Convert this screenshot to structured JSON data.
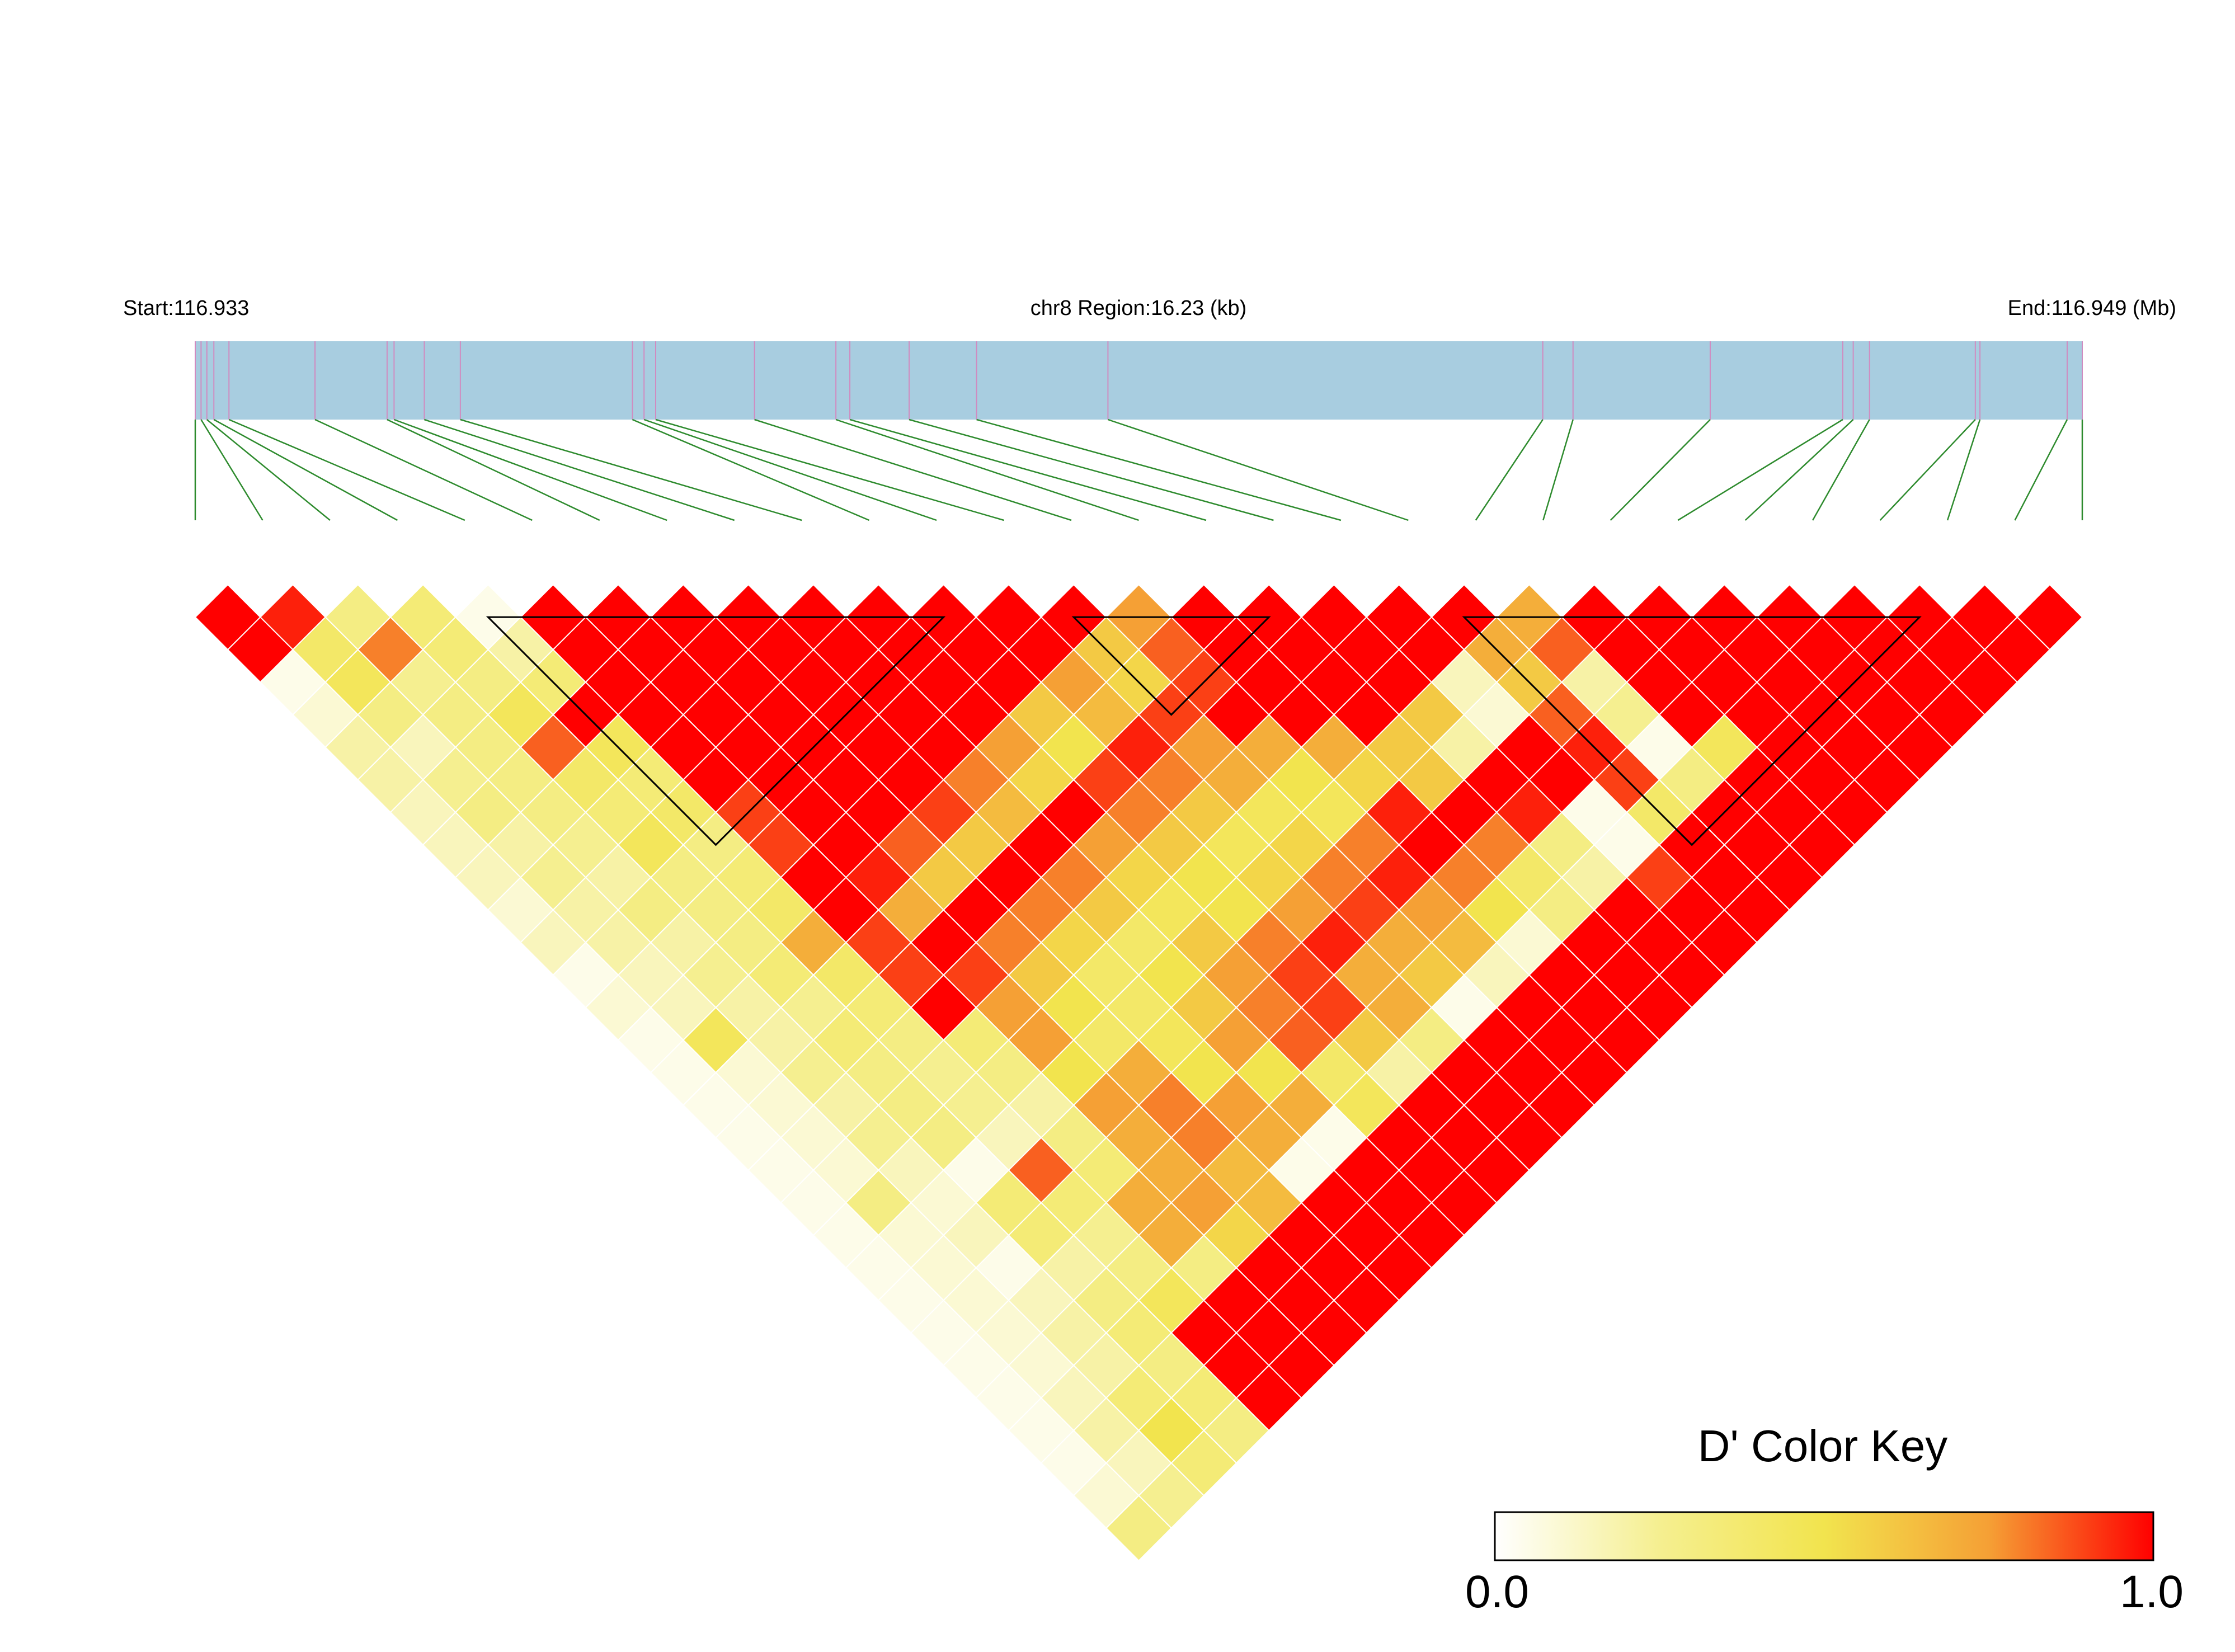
{
  "header": {
    "start_label": "Start:116.933",
    "region_label": "chr8 Region:16.23 (kb)",
    "end_label": "End:116.949 (Mb)"
  },
  "legend": {
    "title": "D' Color Key",
    "min_label": "0.0",
    "max_label": "1.0"
  },
  "colors": {
    "track_fill": "#A8CDE0",
    "snp_tick": "#D08BC0",
    "connector": "#2E8B2E",
    "block_outline": "#000000",
    "scale": [
      "#FFFFFF",
      "#F5EF90",
      "#F2E44E",
      "#F5A035",
      "#FF0000"
    ]
  },
  "chart_data": {
    "type": "heatmap",
    "subtype": "linkage disequilibrium triangle (D')",
    "chromosome": "chr8",
    "region_start_mb": 116.933,
    "region_end_mb": 116.949,
    "region_length_kb": 16.23,
    "snp_count": 29,
    "snp_positions_kb": [
      0.0,
      0.16,
      0.29,
      1.03,
      1.65,
      1.71,
      1.97,
      2.28,
      3.76,
      3.86,
      3.96,
      4.81,
      5.51,
      5.63,
      6.14,
      6.72,
      7.85,
      11.59,
      11.85,
      13.03,
      14.17,
      14.26,
      14.4,
      15.31,
      15.35,
      16.23,
      0.05,
      0.1,
      16.1
    ],
    "value_range": [
      0,
      1
    ],
    "color_scale": "white → yellow → orange → red (D' 0.0 → 1.0)",
    "haplotype_blocks": [
      [
        4,
        12
      ],
      [
        13,
        17
      ],
      [
        19,
        27
      ]
    ],
    "d_prime_by_distance": [
      [
        1,
        0.95,
        0.3,
        0.35,
        0.05,
        1,
        1,
        1,
        1,
        1,
        1,
        1,
        1,
        1,
        0.75,
        1,
        1,
        1,
        1,
        1,
        0.7,
        1,
        1,
        1,
        1,
        1,
        1,
        1,
        1
      ],
      [
        1,
        0.4,
        0.8,
        0.35,
        0.2,
        1,
        1,
        1,
        1,
        1,
        1,
        1,
        1,
        0.6,
        0.85,
        1,
        1,
        1,
        1,
        0.7,
        0.85,
        1,
        1,
        1,
        1,
        1,
        1,
        1
      ],
      [
        0.05,
        0.45,
        0.25,
        0.3,
        0.35,
        1,
        1,
        1,
        1,
        1,
        1,
        1,
        0.75,
        0.55,
        0.9,
        1,
        1,
        1,
        0.15,
        0.6,
        0.2,
        1,
        1,
        1,
        1,
        1,
        1
      ],
      [
        0.1,
        0.3,
        0.3,
        0.45,
        1,
        1,
        1,
        1,
        1,
        1,
        1,
        0.6,
        0.65,
        0.9,
        1,
        1,
        1,
        0.6,
        0.1,
        0.85,
        0.25,
        1,
        1,
        1,
        1,
        1
      ],
      [
        0.2,
        0.15,
        0.3,
        0.85,
        0.45,
        1,
        1,
        1,
        1,
        1,
        0.75,
        0.5,
        0.95,
        0.75,
        0.7,
        0.7,
        0.6,
        0.2,
        1,
        0.95,
        0.05,
        0.45,
        1,
        1,
        1
      ],
      [
        0.2,
        0.25,
        0.3,
        0.4,
        0.35,
        1,
        1,
        1,
        1,
        0.8,
        0.55,
        0.9,
        0.8,
        0.7,
        0.5,
        0.55,
        0.6,
        1,
        1,
        0.9,
        0.3,
        1,
        1,
        1
      ],
      [
        0.15,
        0.3,
        0.3,
        0.35,
        0.4,
        0.9,
        1,
        1,
        0.9,
        0.65,
        1,
        0.8,
        0.6,
        0.45,
        0.45,
        0.95,
        1,
        0.95,
        0.05,
        0.4,
        1,
        1,
        1
      ],
      [
        0.15,
        0.2,
        0.25,
        0.45,
        0.3,
        0.9,
        1,
        0.85,
        0.6,
        1,
        0.75,
        0.6,
        0.45,
        0.55,
        0.8,
        1,
        0.8,
        0.3,
        0.05,
        1,
        1,
        1
      ],
      [
        0.15,
        0.25,
        0.2,
        0.3,
        0.35,
        1,
        0.95,
        0.6,
        1,
        0.8,
        0.55,
        0.5,
        0.55,
        0.8,
        0.95,
        0.8,
        0.4,
        0.2,
        0.9,
        1,
        1
      ],
      [
        0.1,
        0.2,
        0.3,
        0.3,
        0.4,
        1,
        0.7,
        1,
        0.8,
        0.6,
        0.45,
        0.5,
        0.75,
        0.9,
        0.75,
        0.5,
        0.3,
        1,
        1,
        1
      ],
      [
        0.15,
        0.2,
        0.2,
        0.3,
        0.7,
        0.9,
        1,
        0.8,
        0.55,
        0.4,
        0.6,
        0.8,
        0.95,
        0.7,
        0.65,
        0.1,
        1,
        1,
        1
      ],
      [
        0.05,
        0.15,
        0.25,
        0.35,
        0.4,
        0.9,
        0.9,
        0.6,
        0.4,
        0.5,
        0.75,
        0.9,
        0.7,
        0.6,
        0.15,
        1,
        1,
        1
      ],
      [
        0.1,
        0.15,
        0.2,
        0.25,
        0.35,
        1,
        0.75,
        0.5,
        0.4,
        0.6,
        0.8,
        0.9,
        0.7,
        0.05,
        1,
        1,
        1
      ],
      [
        0.05,
        0.45,
        0.2,
        0.35,
        0.3,
        0.35,
        0.75,
        0.4,
        0.45,
        0.75,
        0.85,
        0.6,
        0.3,
        1,
        1,
        1
      ],
      [
        0.05,
        0.1,
        0.25,
        0.3,
        0.25,
        0.3,
        0.5,
        0.7,
        0.5,
        0.5,
        0.4,
        0.2,
        1,
        1,
        1
      ],
      [
        0.05,
        0.1,
        0.2,
        0.3,
        0.25,
        0.2,
        0.75,
        0.8,
        0.75,
        0.7,
        0.45,
        1,
        1,
        1
      ],
      [
        0.05,
        0.1,
        0.25,
        0.3,
        0.15,
        0.3,
        0.7,
        0.8,
        0.7,
        0.05,
        1,
        1,
        1
      ],
      [
        0.05,
        0.1,
        0.15,
        0.05,
        0.85,
        0.35,
        0.7,
        0.65,
        0.05,
        1,
        1,
        1
      ],
      [
        0.05,
        0.3,
        0.1,
        0.35,
        0.35,
        0.7,
        0.75,
        0.65,
        1,
        1,
        1
      ],
      [
        0.05,
        0.1,
        0.15,
        0.35,
        0.25,
        0.7,
        0.55,
        1,
        1,
        1
      ],
      [
        0.05,
        0.1,
        0.05,
        0.2,
        0.3,
        0.3,
        1,
        1,
        1
      ],
      [
        0.05,
        0.1,
        0.15,
        0.3,
        0.45,
        1,
        1,
        1
      ],
      [
        0.05,
        0.1,
        0.2,
        0.35,
        1,
        1,
        1
      ],
      [
        0.05,
        0.1,
        0.2,
        0.3,
        1,
        1
      ],
      [
        0.05,
        0.15,
        0.35,
        0.35,
        1
      ],
      [
        0.05,
        0.2,
        0.5,
        0.3
      ],
      [
        0.05,
        0.15,
        0.35
      ],
      [
        0.1,
        0.25
      ],
      [
        0.3
      ]
    ]
  }
}
